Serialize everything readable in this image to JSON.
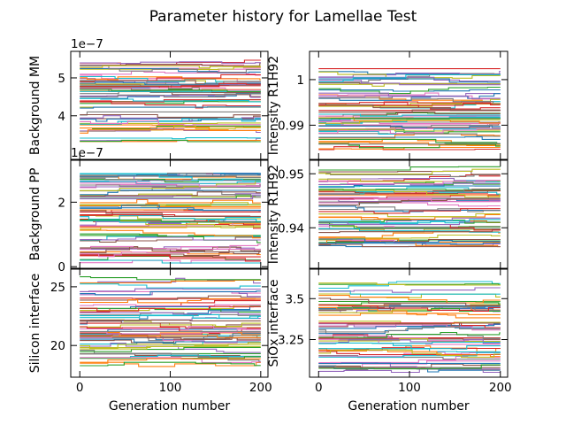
{
  "figure": {
    "title": "Parameter history for Lamellae Test"
  },
  "chart_data": [
    {
      "type": "line",
      "panel": "top-left",
      "ylabel": "Background MM",
      "offset_label": "1e−7",
      "xlabel": "",
      "xlim": [
        -10,
        208
      ],
      "ylim": [
        2.85,
        5.7
      ],
      "xticks": [
        0,
        100,
        200
      ],
      "yticks": [
        4,
        5
      ],
      "band": [
        3.3,
        5.5
      ],
      "n_traces": 60,
      "x_range": [
        0,
        200
      ]
    },
    {
      "type": "line",
      "panel": "top-right",
      "ylabel": "Intensity R1H92",
      "offset_label": "",
      "xlabel": "",
      "xlim": [
        -10,
        208
      ],
      "ylim": [
        0.9825,
        1.0062
      ],
      "xticks": [
        0,
        100,
        200
      ],
      "yticks": [
        0.99,
        1.0
      ],
      "band": [
        0.9845,
        1.0025
      ],
      "n_traces": 60,
      "x_range": [
        0,
        200
      ]
    },
    {
      "type": "line",
      "panel": "middle-left",
      "ylabel": "Background PP",
      "offset_label": "1e−7",
      "xlabel": "",
      "xlim": [
        -10,
        208
      ],
      "ylim": [
        -0.05,
        3.3
      ],
      "xticks": [
        0,
        100,
        200
      ],
      "yticks": [
        0,
        2
      ],
      "band": [
        0.1,
        2.9
      ],
      "n_traces": 70,
      "x_range": [
        0,
        200
      ]
    },
    {
      "type": "line",
      "panel": "middle-right",
      "ylabel": "Intensity R1H92",
      "offset_label": "",
      "xlabel": "",
      "xlim": [
        -10,
        208
      ],
      "ylim": [
        0.9325,
        0.9525
      ],
      "xticks": [
        0,
        100,
        200
      ],
      "yticks": [
        0.94,
        0.95
      ],
      "band": [
        0.9365,
        0.9515
      ],
      "n_traces": 60,
      "x_range": [
        0,
        200
      ]
    },
    {
      "type": "line",
      "panel": "bottom-left",
      "ylabel": "Silicon interface",
      "offset_label": "",
      "xlabel": "Generation number",
      "xlim": [
        -10,
        208
      ],
      "ylim": [
        17.3,
        26.5
      ],
      "xticks": [
        0,
        100,
        200
      ],
      "yticks": [
        20,
        25
      ],
      "band": [
        18.2,
        25.9
      ],
      "n_traces": 60,
      "x_range": [
        0,
        200
      ]
    },
    {
      "type": "line",
      "panel": "bottom-right",
      "ylabel": "SiOx interface",
      "offset_label": "",
      "xlabel": "Generation number",
      "xlim": [
        -10,
        208
      ],
      "ylim": [
        3.02,
        3.68
      ],
      "xticks": [
        0,
        100,
        200
      ],
      "yticks": [
        3.25,
        3.5
      ],
      "band": [
        3.05,
        3.62
      ],
      "n_traces": 60,
      "x_range": [
        0,
        200
      ]
    }
  ]
}
